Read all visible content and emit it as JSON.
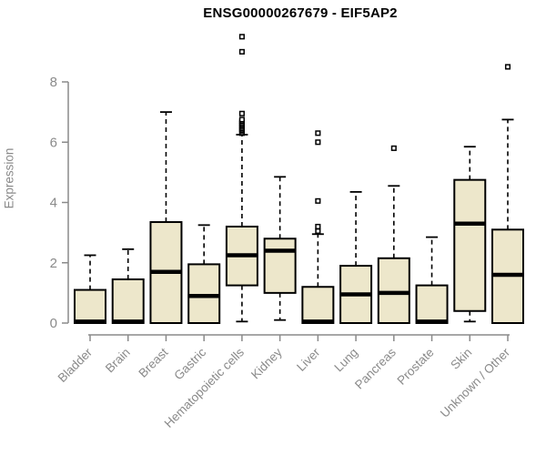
{
  "chart_data": {
    "type": "boxplot",
    "title": "ENSG00000267679 - EIF5AP2",
    "ylabel": "Expression",
    "xlabel": "",
    "ylim": [
      0,
      8
    ],
    "yticks": [
      0,
      2,
      4,
      6,
      8
    ],
    "grid": false,
    "legend": "none",
    "box_fill_color": "#EDE7CB",
    "box_border_color": "#000000",
    "axis_color": "#8a8a8a",
    "title_color": "#000000",
    "categories": [
      "Bladder",
      "Brain",
      "Breast",
      "Gastric",
      "Hematopoietic cells",
      "Kidney",
      "Liver",
      "Lung",
      "Pancreas",
      "Prostate",
      "Skin",
      "Unknown / Other"
    ],
    "series": [
      {
        "name": "Bladder",
        "q1": 0,
        "median": 0.05,
        "q3": 1.1,
        "whisker_low": 0,
        "whisker_high": 2.25,
        "outliers": []
      },
      {
        "name": "Brain",
        "q1": 0,
        "median": 0.05,
        "q3": 1.45,
        "whisker_low": 0,
        "whisker_high": 2.45,
        "outliers": []
      },
      {
        "name": "Breast",
        "q1": 0,
        "median": 1.7,
        "q3": 3.35,
        "whisker_low": 0,
        "whisker_high": 7.0,
        "outliers": []
      },
      {
        "name": "Gastric",
        "q1": 0,
        "median": 0.9,
        "q3": 1.95,
        "whisker_low": 0,
        "whisker_high": 3.25,
        "outliers": []
      },
      {
        "name": "Hematopoietic cells",
        "q1": 1.25,
        "median": 2.25,
        "q3": 3.2,
        "whisker_low": 0.05,
        "whisker_high": 6.25,
        "outliers": [
          6.3,
          6.35,
          6.4,
          6.45,
          6.5,
          6.55,
          6.6,
          6.65,
          6.7,
          6.75,
          6.95,
          9.0,
          9.5
        ]
      },
      {
        "name": "Kidney",
        "q1": 1.0,
        "median": 2.4,
        "q3": 2.8,
        "whisker_low": 0.1,
        "whisker_high": 4.85,
        "outliers": []
      },
      {
        "name": "Liver",
        "q1": 0,
        "median": 0.05,
        "q3": 1.2,
        "whisker_low": 0,
        "whisker_high": 2.95,
        "outliers": [
          3.05,
          3.2,
          4.05,
          6.0,
          6.3
        ]
      },
      {
        "name": "Lung",
        "q1": 0,
        "median": 0.95,
        "q3": 1.9,
        "whisker_low": 0,
        "whisker_high": 4.35,
        "outliers": []
      },
      {
        "name": "Pancreas",
        "q1": 0,
        "median": 1.0,
        "q3": 2.15,
        "whisker_low": 0,
        "whisker_high": 4.55,
        "outliers": [
          5.8
        ]
      },
      {
        "name": "Prostate",
        "q1": 0,
        "median": 0.05,
        "q3": 1.25,
        "whisker_low": 0,
        "whisker_high": 2.85,
        "outliers": []
      },
      {
        "name": "Skin",
        "q1": 0.4,
        "median": 3.3,
        "q3": 4.75,
        "whisker_low": 0.05,
        "whisker_high": 5.85,
        "outliers": []
      },
      {
        "name": "Unknown / Other",
        "q1": 0,
        "median": 1.6,
        "q3": 3.1,
        "whisker_low": 0,
        "whisker_high": 6.75,
        "outliers": [
          8.5
        ]
      }
    ]
  }
}
